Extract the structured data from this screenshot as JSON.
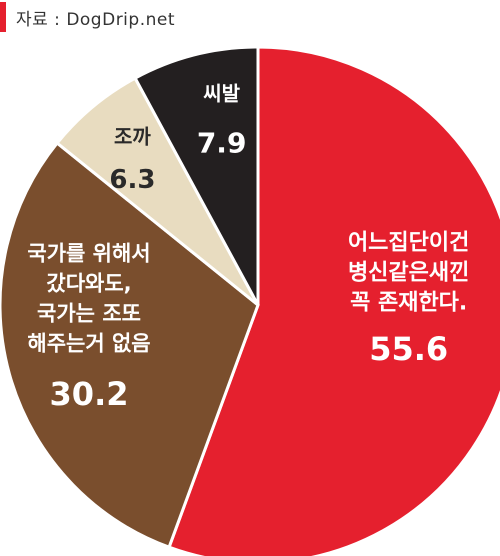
{
  "source": {
    "text": "자료 : DogDrip.net"
  },
  "chart_data": {
    "type": "pie",
    "start": "12 o'clock, clockwise",
    "slices": [
      {
        "label": [
          "어느집단이건",
          "병신같은새낀",
          "꼭 존재한다."
        ],
        "value": 55.6,
        "value_text": "55.6",
        "color": "#e5202e",
        "text_color": "#ffffff"
      },
      {
        "label": [
          "국가를 위해서",
          "갔다와도,",
          "국가는 조또",
          "해주는거 없음"
        ],
        "value": 30.2,
        "value_text": "30.2",
        "color": "#7a4e2d",
        "text_color": "#ffffff"
      },
      {
        "label": [
          "조까"
        ],
        "value": 6.3,
        "value_text": "6.3",
        "color": "#e8dcc0",
        "text_color": "#2a2a2a"
      },
      {
        "label": [
          "씨발"
        ],
        "value": 7.9,
        "value_text": "7.9",
        "color": "#231f20",
        "text_color": "#ffffff"
      }
    ]
  }
}
